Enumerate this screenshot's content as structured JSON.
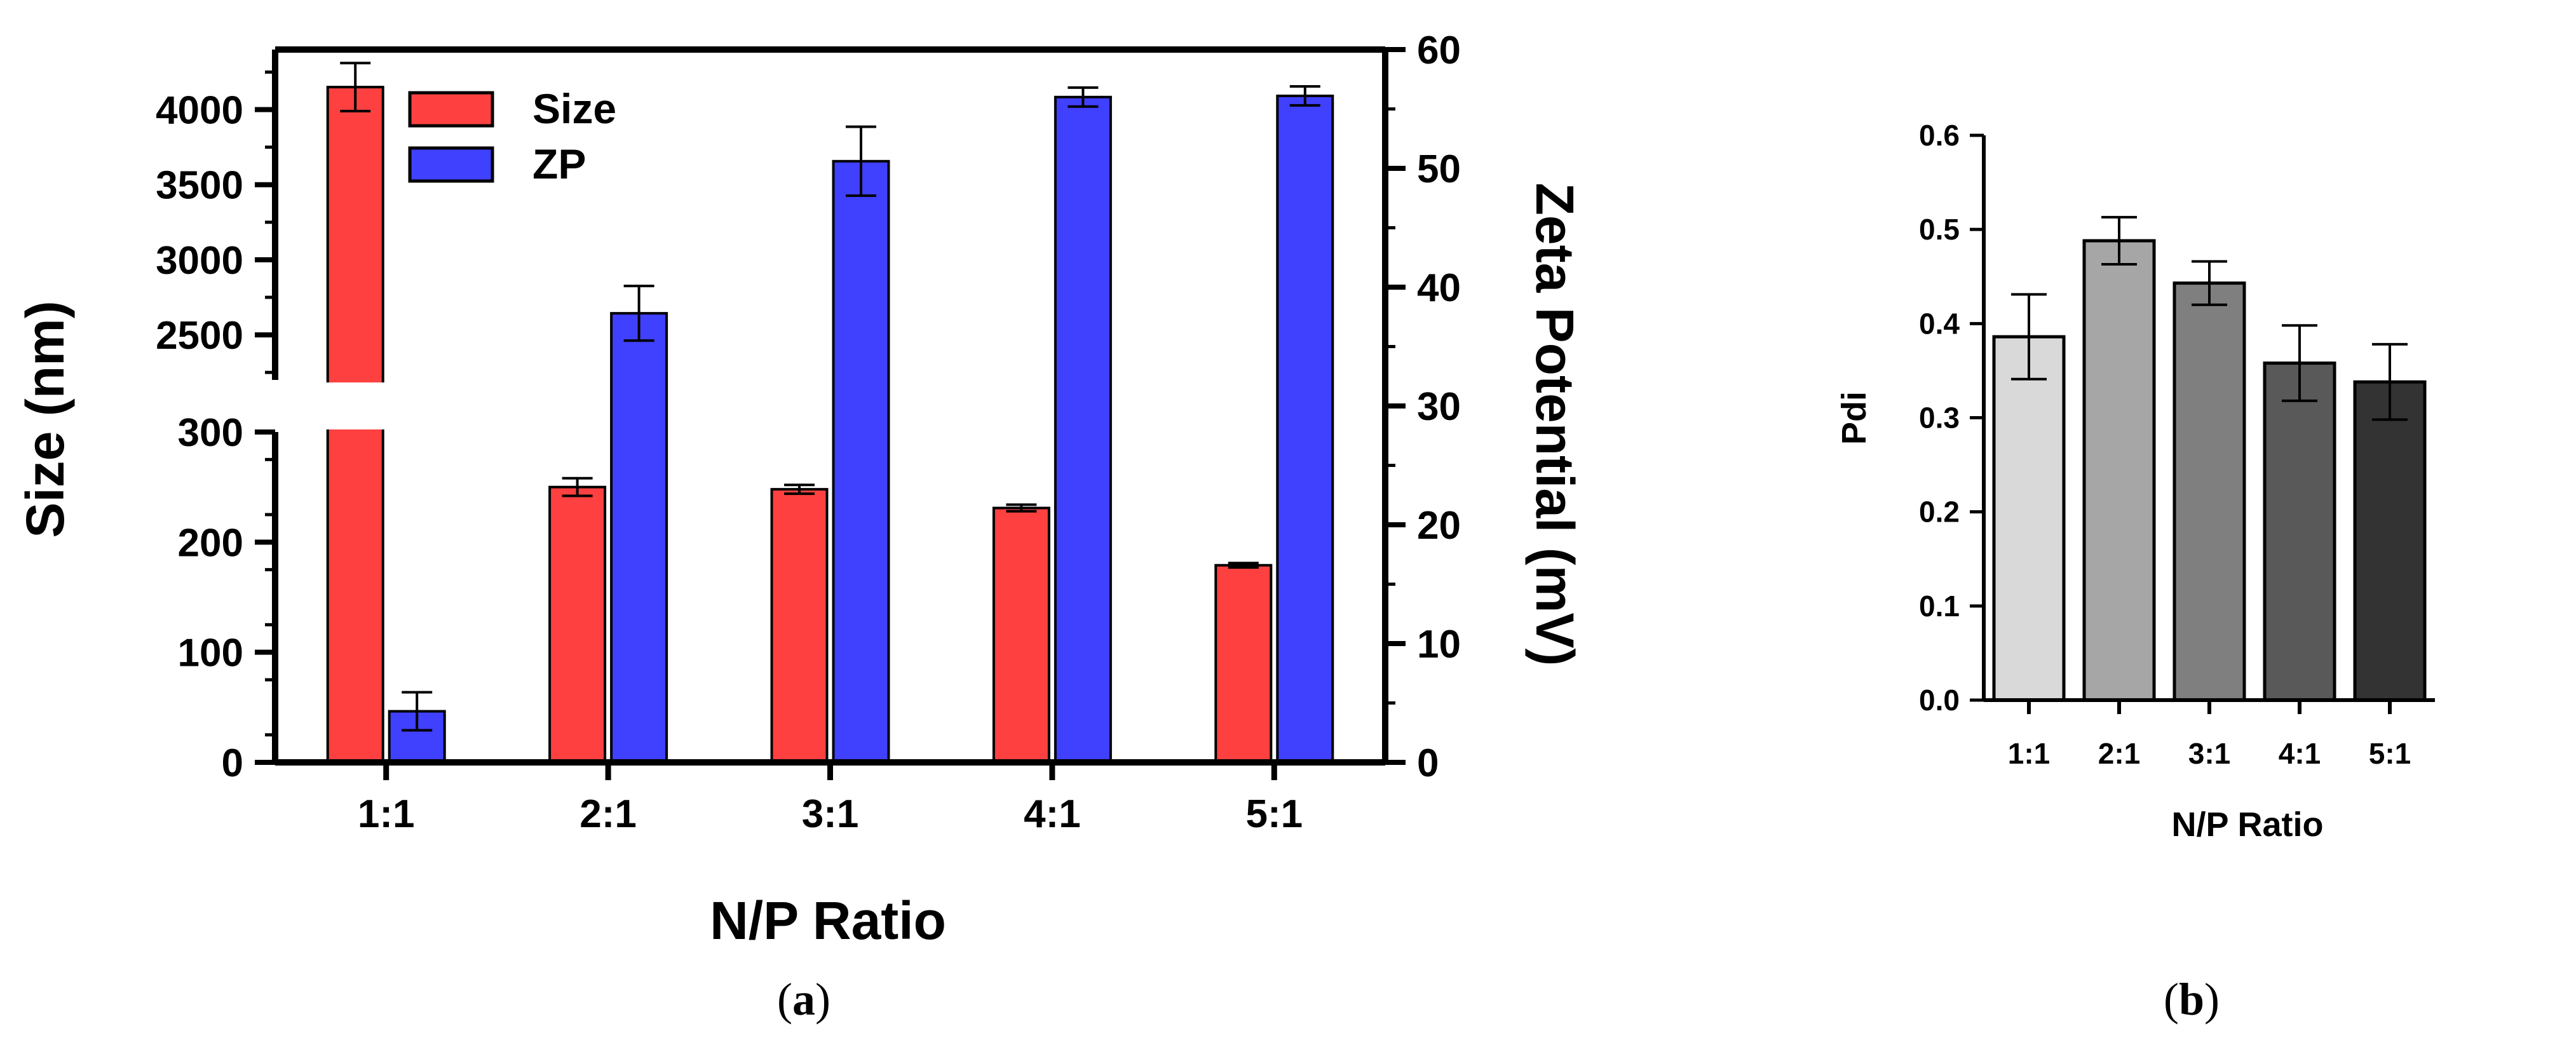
{
  "colors": {
    "size": "#ff4040",
    "zp": "#4040ff",
    "pdi": [
      "#d9d9d9",
      "#a6a6a6",
      "#7f7f7f",
      "#595959",
      "#333333"
    ]
  },
  "chart_data": [
    {
      "id": "a",
      "panel_label_parts": [
        "(",
        "a",
        ")"
      ],
      "type": "bar",
      "categories": [
        "1:1",
        "2:1",
        "3:1",
        "4:1",
        "5:1"
      ],
      "xlabel": "N/P Ratio",
      "ylabel": "Size (nm)",
      "ylabel2": "Zeta Potential (mV)",
      "axis_break": true,
      "y_lower_range": [
        0,
        300
      ],
      "y_upper_range": [
        2200,
        4400
      ],
      "y_lower_ticks": [
        "0",
        "100",
        "200",
        "300"
      ],
      "y_upper_ticks": [
        "2500",
        "3000",
        "3500",
        "4000"
      ],
      "y2_range": [
        0,
        60
      ],
      "y2_ticks": [
        "0",
        "10",
        "20",
        "30",
        "40",
        "50",
        "60"
      ],
      "legend": {
        "position": "top-left",
        "entries": [
          "Size",
          "ZP"
        ]
      },
      "series": [
        {
          "name": "Size",
          "axis": "left",
          "values": [
            4150,
            250,
            248,
            231,
            179
          ],
          "errors": [
            160,
            8,
            4,
            3,
            2
          ]
        },
        {
          "name": "ZP",
          "axis": "right",
          "values": [
            4.3,
            37.8,
            50.6,
            56.0,
            56.1
          ],
          "errors": [
            1.6,
            2.3,
            2.9,
            0.8,
            0.8
          ]
        }
      ]
    },
    {
      "id": "b",
      "panel_label_parts": [
        "(",
        "b",
        ")"
      ],
      "type": "bar",
      "categories": [
        "1:1",
        "2:1",
        "3:1",
        "4:1",
        "5:1"
      ],
      "xlabel": "N/P Ratio",
      "ylabel": "Pdi",
      "ylim": [
        0,
        0.6
      ],
      "y_ticks": [
        "0.0",
        "0.1",
        "0.2",
        "0.3",
        "0.4",
        "0.5",
        "0.6"
      ],
      "series": [
        {
          "name": "Pdi",
          "values": [
            0.386,
            0.488,
            0.443,
            0.358,
            0.338
          ],
          "errors": [
            0.045,
            0.025,
            0.023,
            0.04,
            0.04
          ]
        }
      ]
    }
  ]
}
